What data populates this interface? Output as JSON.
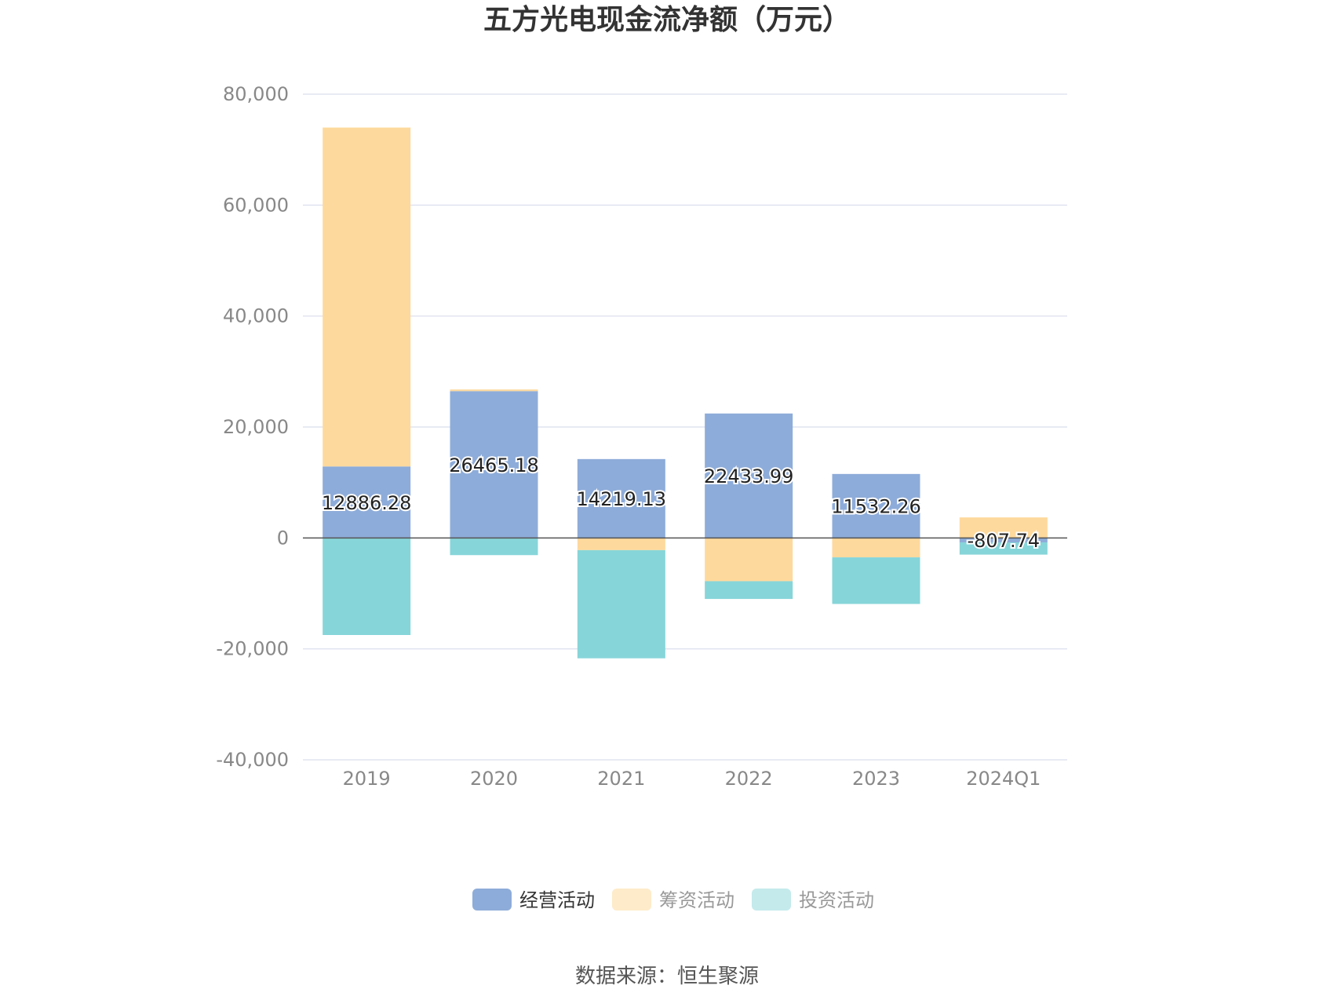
{
  "title": "五方光电现金流净额（万元）",
  "source": "数据来源：恒生聚源",
  "chart_data": {
    "type": "bar",
    "stacked": true,
    "categories": [
      "2019",
      "2020",
      "2021",
      "2022",
      "2023",
      "2024Q1"
    ],
    "ylim": [
      -40000,
      80000
    ],
    "yticks": [
      80000,
      60000,
      40000,
      20000,
      0,
      -20000,
      -40000
    ],
    "ytick_labels": [
      "80,000",
      "60,000",
      "40,000",
      "20,000",
      "0",
      "-20,000",
      "-40,000"
    ],
    "grid": true,
    "legend_position": "bottom",
    "series": [
      {
        "name": "经营活动",
        "color": "#8eacd9",
        "values": [
          12886.28,
          26465.18,
          14219.13,
          22433.99,
          11532.26,
          -807.74
        ]
      },
      {
        "name": "筹资活动",
        "color": "#fed99d",
        "values": [
          61100,
          300,
          -2200,
          -7800,
          -3500,
          3700
        ]
      },
      {
        "name": "投资活动",
        "color": "#86d5d9",
        "values": [
          -17500,
          -3100,
          -19500,
          -3200,
          -8400,
          -2200
        ]
      }
    ],
    "data_labels": [
      "12886.28",
      "26465.18",
      "14219.13",
      "22433.99",
      "11532.26",
      "-807.74"
    ],
    "legend_colors": [
      "#8eacd9",
      "#feebc9",
      "#c4eaec"
    ]
  }
}
